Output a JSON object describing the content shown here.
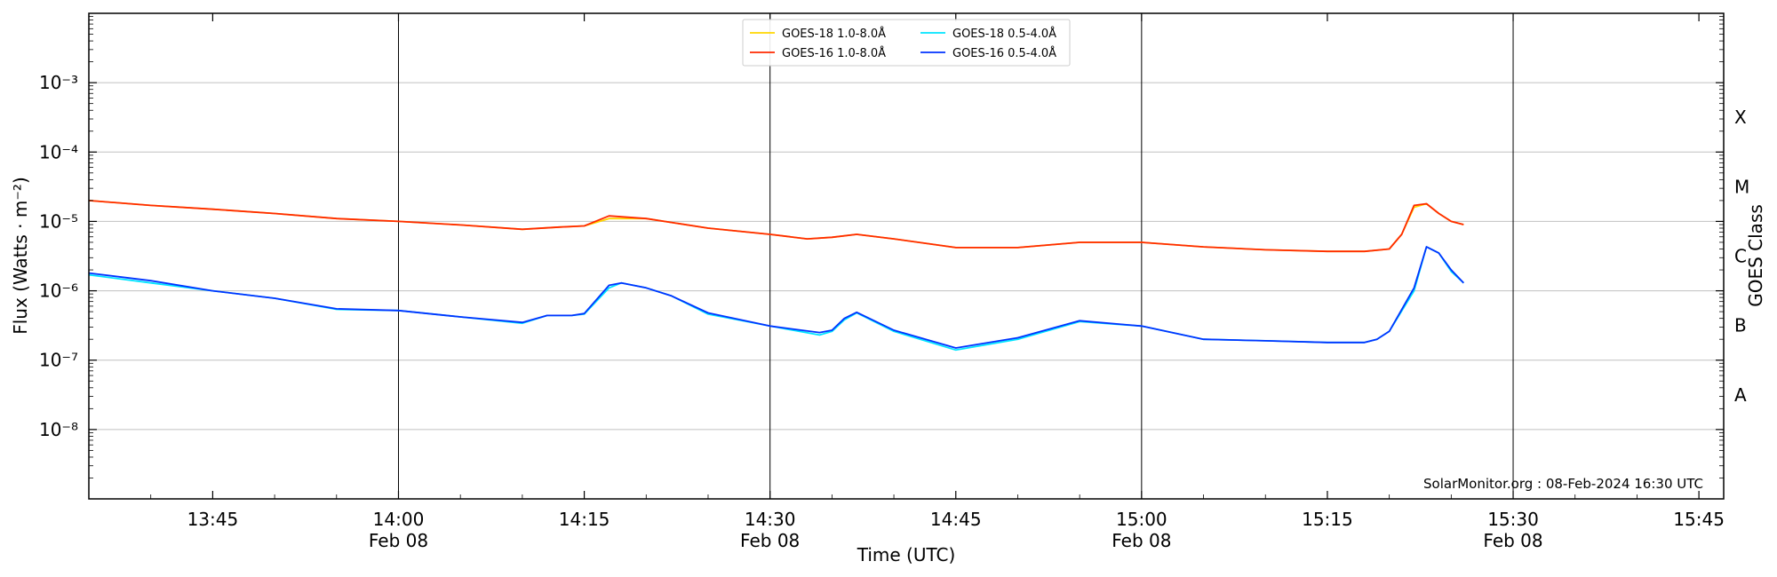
{
  "chart_data": {
    "type": "line",
    "ylabel": "Flux (Watts · m⁻²)",
    "xlabel": "Time (UTC)",
    "right_ylabel": "GOES Class",
    "credit": "SolarMonitor.org : 08-Feb-2024 16:30 UTC",
    "y_scale": "log",
    "ylim": [
      1e-09,
      0.01
    ],
    "xlim": [
      "13:35",
      "15:47"
    ],
    "grid": "horizontal at each decade",
    "legend_position": "top-center",
    "y_ticks": [
      {
        "value": 1e-08,
        "label": "10⁻⁸"
      },
      {
        "value": 1e-07,
        "label": "10⁻⁷"
      },
      {
        "value": 1e-06,
        "label": "10⁻⁶"
      },
      {
        "value": 1e-05,
        "label": "10⁻⁵"
      },
      {
        "value": 0.0001,
        "label": "10⁻⁴"
      },
      {
        "value": 0.001,
        "label": "10⁻³"
      }
    ],
    "x_ticks": [
      {
        "time": "13:45",
        "label": "13:45",
        "sublabel": ""
      },
      {
        "time": "14:00",
        "label": "14:00",
        "sublabel": "Feb 08"
      },
      {
        "time": "14:15",
        "label": "14:15",
        "sublabel": ""
      },
      {
        "time": "14:30",
        "label": "14:30",
        "sublabel": "Feb 08"
      },
      {
        "time": "14:45",
        "label": "14:45",
        "sublabel": ""
      },
      {
        "time": "15:00",
        "label": "15:00",
        "sublabel": "Feb 08"
      },
      {
        "time": "15:15",
        "label": "15:15",
        "sublabel": ""
      },
      {
        "time": "15:30",
        "label": "15:30",
        "sublabel": "Feb 08"
      },
      {
        "time": "15:45",
        "label": "15:45",
        "sublabel": ""
      }
    ],
    "goes_classes": [
      {
        "label": "A",
        "lower": 1e-08,
        "upper": 1e-07
      },
      {
        "label": "B",
        "lower": 1e-07,
        "upper": 1e-06
      },
      {
        "label": "C",
        "lower": 1e-06,
        "upper": 1e-05
      },
      {
        "label": "M",
        "lower": 1e-05,
        "upper": 0.0001
      },
      {
        "label": "X",
        "lower": 0.0001,
        "upper": 0.001
      }
    ],
    "series": [
      {
        "name": "GOES-18 1.0-8.0Å",
        "color": "#ffd700",
        "x": [
          "13:35",
          "13:40",
          "13:45",
          "13:50",
          "13:55",
          "14:00",
          "14:05",
          "14:10",
          "14:13",
          "14:15",
          "14:17",
          "14:20",
          "14:25",
          "14:30",
          "14:33",
          "14:35",
          "14:37",
          "14:40",
          "14:45",
          "14:50",
          "14:55",
          "15:00",
          "15:05",
          "15:10",
          "15:15",
          "15:18",
          "15:20",
          "15:21",
          "15:22",
          "15:23",
          "15:24",
          "15:25",
          "15:26"
        ],
        "values": [
          2e-05,
          1.7e-05,
          1.5e-05,
          1.3e-05,
          1.1e-05,
          1e-05,
          8.9e-06,
          7.7e-06,
          8.3e-06,
          8.6e-06,
          1.1e-05,
          1.1e-05,
          8e-06,
          6.5e-06,
          5.6e-06,
          5.9e-06,
          6.5e-06,
          5.6e-06,
          4.2e-06,
          4.2e-06,
          5e-06,
          5e-06,
          4.3e-06,
          3.9e-06,
          3.7e-06,
          3.7e-06,
          4e-06,
          6.5e-06,
          1.6e-05,
          1.8e-05,
          1.3e-05,
          1e-05,
          9e-06
        ]
      },
      {
        "name": "GOES-16 1.0-8.0Å",
        "color": "#ff2a00",
        "x": [
          "13:35",
          "13:40",
          "13:45",
          "13:50",
          "13:55",
          "14:00",
          "14:05",
          "14:10",
          "14:13",
          "14:15",
          "14:17",
          "14:20",
          "14:25",
          "14:30",
          "14:33",
          "14:35",
          "14:37",
          "14:40",
          "14:45",
          "14:50",
          "14:55",
          "15:00",
          "15:05",
          "15:10",
          "15:15",
          "15:18",
          "15:20",
          "15:21",
          "15:22",
          "15:23",
          "15:24",
          "15:25",
          "15:26"
        ],
        "values": [
          2e-05,
          1.7e-05,
          1.5e-05,
          1.3e-05,
          1.1e-05,
          1e-05,
          8.9e-06,
          7.7e-06,
          8.3e-06,
          8.6e-06,
          1.2e-05,
          1.1e-05,
          8e-06,
          6.5e-06,
          5.6e-06,
          5.9e-06,
          6.5e-06,
          5.6e-06,
          4.2e-06,
          4.2e-06,
          5e-06,
          5e-06,
          4.3e-06,
          3.9e-06,
          3.7e-06,
          3.7e-06,
          4e-06,
          6.5e-06,
          1.7e-05,
          1.8e-05,
          1.3e-05,
          1e-05,
          9e-06
        ]
      },
      {
        "name": "GOES-18 0.5-4.0Å",
        "color": "#00e5ff",
        "x": [
          "13:35",
          "13:40",
          "13:45",
          "13:50",
          "13:55",
          "14:00",
          "14:05",
          "14:10",
          "14:12",
          "14:14",
          "14:15",
          "14:17",
          "14:18",
          "14:20",
          "14:22",
          "14:25",
          "14:30",
          "14:34",
          "14:35",
          "14:36",
          "14:37",
          "14:40",
          "14:45",
          "14:50",
          "14:55",
          "15:00",
          "15:05",
          "15:10",
          "15:15",
          "15:18",
          "15:19",
          "15:20",
          "15:22",
          "15:23",
          "15:24",
          "15:25",
          "15:26"
        ],
        "values": [
          1.7e-06,
          1.3e-06,
          1e-06,
          7.8e-07,
          5.4e-07,
          5.2e-07,
          4.2e-07,
          3.4e-07,
          4.4e-07,
          4.4e-07,
          4.6e-07,
          1.1e-06,
          1.3e-06,
          1.1e-06,
          8.5e-07,
          4.6e-07,
          3.1e-07,
          2.3e-07,
          2.6e-07,
          3.8e-07,
          4.8e-07,
          2.6e-07,
          1.4e-07,
          2e-07,
          3.6e-07,
          3.1e-07,
          2e-07,
          1.9e-07,
          1.8e-07,
          1.8e-07,
          2e-07,
          2.6e-07,
          1e-06,
          4.3e-06,
          3.5e-06,
          1.9e-06,
          1.3e-06
        ]
      },
      {
        "name": "GOES-16 0.5-4.0Å",
        "color": "#0033ff",
        "x": [
          "13:35",
          "13:40",
          "13:45",
          "13:50",
          "13:55",
          "14:00",
          "14:05",
          "14:10",
          "14:12",
          "14:14",
          "14:15",
          "14:17",
          "14:18",
          "14:20",
          "14:22",
          "14:25",
          "14:30",
          "14:34",
          "14:35",
          "14:36",
          "14:37",
          "14:40",
          "14:45",
          "14:50",
          "14:55",
          "15:00",
          "15:05",
          "15:10",
          "15:15",
          "15:18",
          "15:19",
          "15:20",
          "15:22",
          "15:23",
          "15:24",
          "15:25",
          "15:26"
        ],
        "values": [
          1.8e-06,
          1.4e-06,
          1e-06,
          7.8e-07,
          5.5e-07,
          5.2e-07,
          4.2e-07,
          3.5e-07,
          4.4e-07,
          4.4e-07,
          4.7e-07,
          1.2e-06,
          1.3e-06,
          1.1e-06,
          8.5e-07,
          4.8e-07,
          3.1e-07,
          2.5e-07,
          2.7e-07,
          4e-07,
          4.9e-07,
          2.7e-07,
          1.5e-07,
          2.1e-07,
          3.7e-07,
          3.1e-07,
          2e-07,
          1.9e-07,
          1.8e-07,
          1.8e-07,
          2e-07,
          2.6e-07,
          1.1e-06,
          4.3e-06,
          3.5e-06,
          2e-06,
          1.3e-06
        ]
      }
    ]
  }
}
